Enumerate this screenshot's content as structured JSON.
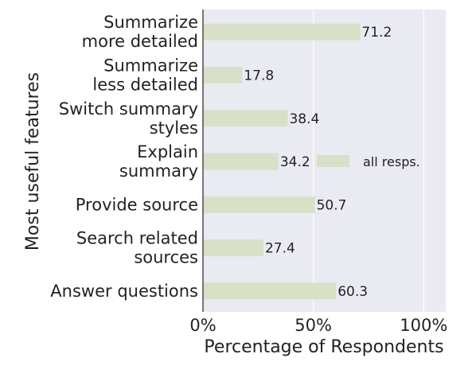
{
  "chart_data": {
    "type": "bar",
    "orientation": "horizontal",
    "categories": [
      [
        "Summarize",
        "more detailed"
      ],
      [
        "Summarize",
        "less detailed"
      ],
      [
        "Switch summary",
        "styles"
      ],
      [
        "Explain",
        "summary"
      ],
      [
        "Provide source"
      ],
      [
        "Search related",
        "sources"
      ],
      [
        "Answer questions"
      ]
    ],
    "values": [
      71.2,
      17.8,
      38.4,
      34.2,
      50.7,
      27.4,
      60.3
    ],
    "value_labels": [
      "71.2",
      "17.8",
      "38.4",
      "34.2",
      "50.7",
      "27.4",
      "60.3"
    ],
    "series": [
      {
        "name": "all resps.",
        "values": [
          71.2,
          17.8,
          38.4,
          34.2,
          50.7,
          27.4,
          60.3
        ]
      }
    ],
    "xlabel": "Percentage of Respondents",
    "ylabel": "Most useful features",
    "xlim": [
      0,
      110
    ],
    "xticks": [
      0,
      50,
      100
    ],
    "xtick_labels": [
      "0%",
      "50%",
      "100%"
    ],
    "grid": "vertical",
    "legend_position": "right, inside plot",
    "colors": {
      "bar": "#d9e0c8",
      "plot_background": "#eaeaf2",
      "grid": "#ffffff",
      "axis": "#333333",
      "text": "#222222"
    }
  }
}
